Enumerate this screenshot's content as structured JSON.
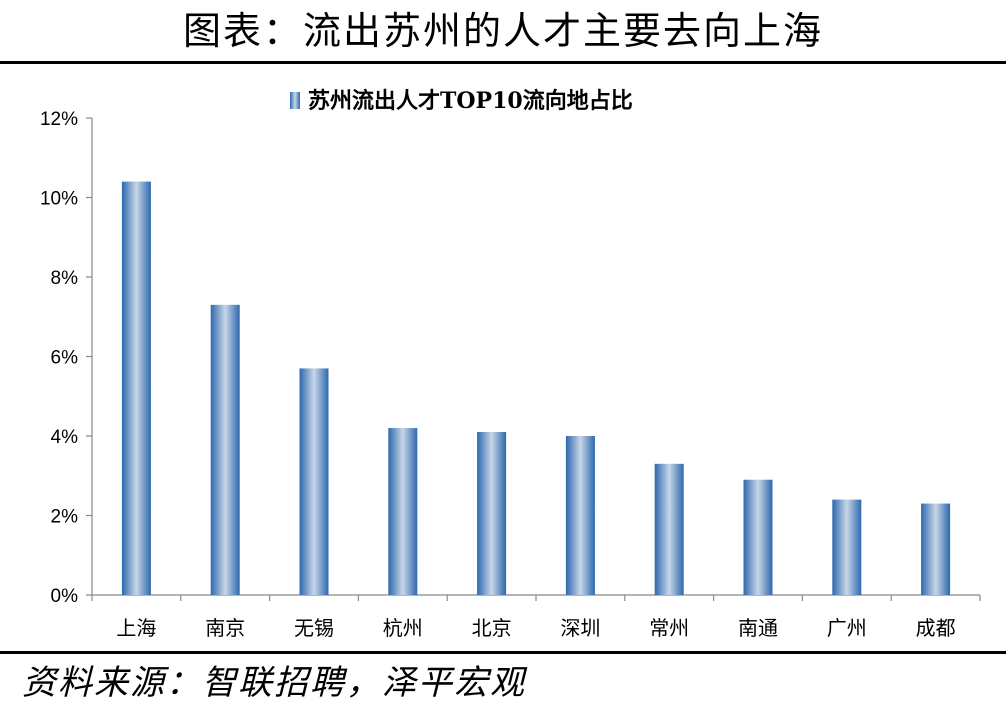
{
  "header": {
    "title": "图表：流出苏州的人才主要去向上海"
  },
  "footer": {
    "source": "资料来源：智联招聘，泽平宏观"
  },
  "colors": {
    "bar_edge": "#2e68ad",
    "bar_light": "#c7d6e8",
    "axis": "#888888"
  },
  "chart_data": {
    "type": "bar",
    "title": "",
    "xlabel": "",
    "ylabel": "",
    "categories": [
      "上海",
      "南京",
      "无锡",
      "杭州",
      "北京",
      "深圳",
      "常州",
      "南通",
      "广州",
      "成都"
    ],
    "series": [
      {
        "name": "苏州流出人才TOP10流向地占比",
        "values": [
          10.4,
          7.3,
          5.7,
          4.2,
          4.1,
          4.0,
          3.3,
          2.9,
          2.4,
          2.3
        ]
      }
    ],
    "ylim": [
      0,
      12
    ],
    "yticks": [
      0,
      2,
      4,
      6,
      8,
      10,
      12
    ],
    "ytick_labels": [
      "0%",
      "2%",
      "4%",
      "6%",
      "8%",
      "10%",
      "12%"
    ],
    "legend_position": "top-center",
    "grid": false
  }
}
